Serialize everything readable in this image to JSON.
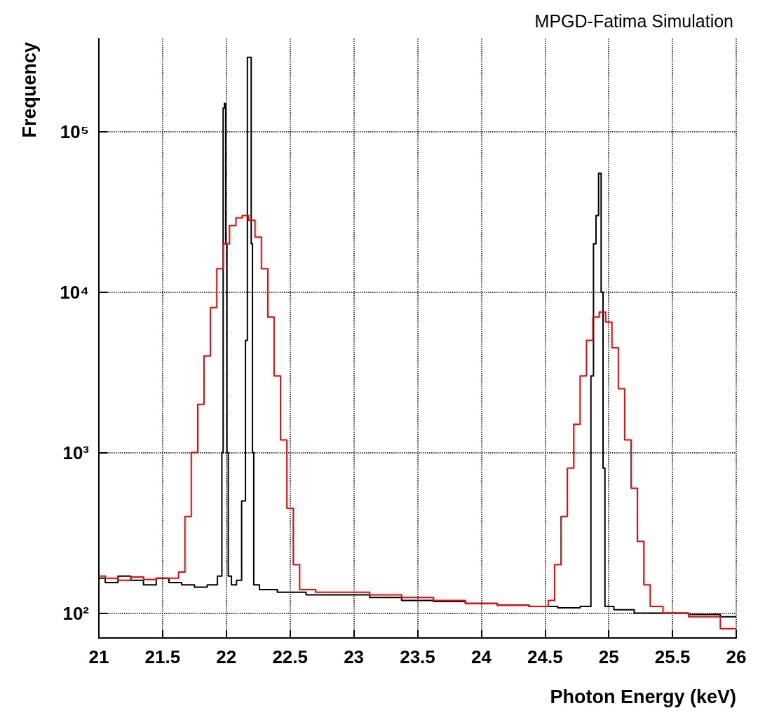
{
  "chart_data": {
    "type": "step",
    "title": "MPGD-Fatima Simulation",
    "xlabel": "Photon Energy (keV)",
    "ylabel": "Frequency",
    "log": "y",
    "grid": true,
    "marker": "none",
    "line_style": "solid",
    "xlim": [
      21,
      26
    ],
    "xticks": [
      21,
      21.5,
      22,
      22.5,
      23,
      23.5,
      24,
      24.5,
      25,
      25.5,
      26
    ],
    "ylim": [
      70,
      380000
    ],
    "yticks": [
      {
        "value": 100,
        "label": "10²"
      },
      {
        "value": 1000,
        "label": "10³"
      },
      {
        "value": 10000,
        "label": "10⁴"
      },
      {
        "value": 100000,
        "label": "10⁵"
      }
    ],
    "series": [
      {
        "color": "#000000",
        "x": [
          21.0,
          21.1,
          21.2,
          21.3,
          21.4,
          21.5,
          21.6,
          21.7,
          21.8,
          21.9,
          21.96,
          21.97,
          21.98,
          21.99,
          22.0,
          22.01,
          22.02,
          22.06,
          22.1,
          22.14,
          22.16,
          22.17,
          22.19,
          22.2,
          22.21,
          22.22,
          22.3,
          22.5,
          22.75,
          23.0,
          23.25,
          23.5,
          23.75,
          24.0,
          24.25,
          24.5,
          24.7,
          24.85,
          24.87,
          24.89,
          24.91,
          24.93,
          24.95,
          24.96,
          24.98,
          25.1,
          25.3,
          25.5,
          25.75,
          26.0
        ],
        "values": [
          165,
          155,
          170,
          160,
          150,
          165,
          155,
          150,
          145,
          150,
          170,
          1000,
          140000,
          150000,
          20000,
          1000,
          170,
          150,
          160,
          500,
          5000,
          290000,
          290000,
          20000,
          1000,
          150,
          140,
          135,
          130,
          130,
          125,
          120,
          118,
          115,
          112,
          110,
          108,
          110,
          3000,
          20000,
          30000,
          55000,
          10000,
          800,
          110,
          105,
          100,
          100,
          98,
          95
        ]
      },
      {
        "color": "#ff0000",
        "x": [
          21.0,
          21.1,
          21.2,
          21.3,
          21.4,
          21.5,
          21.6,
          21.65,
          21.7,
          21.75,
          21.8,
          21.85,
          21.9,
          21.95,
          22.0,
          22.05,
          22.1,
          22.15,
          22.2,
          22.25,
          22.3,
          22.35,
          22.4,
          22.45,
          22.5,
          22.55,
          22.6,
          22.8,
          23.0,
          23.25,
          23.5,
          23.75,
          24.0,
          24.25,
          24.5,
          24.55,
          24.6,
          24.65,
          24.7,
          24.75,
          24.8,
          24.85,
          24.9,
          24.95,
          25.0,
          25.05,
          25.1,
          25.15,
          25.2,
          25.25,
          25.3,
          25.35,
          25.5,
          25.75,
          26.0
        ],
        "values": [
          170,
          165,
          160,
          168,
          162,
          165,
          165,
          180,
          400,
          1000,
          2000,
          4000,
          8000,
          14000,
          20000,
          26000,
          29000,
          30000,
          28000,
          22000,
          14000,
          7000,
          3000,
          1200,
          450,
          200,
          140,
          135,
          135,
          130,
          125,
          120,
          115,
          112,
          110,
          120,
          200,
          400,
          800,
          1500,
          3000,
          5000,
          7000,
          7500,
          6500,
          4500,
          2500,
          1200,
          600,
          280,
          150,
          110,
          100,
          95,
          80
        ]
      }
    ]
  }
}
